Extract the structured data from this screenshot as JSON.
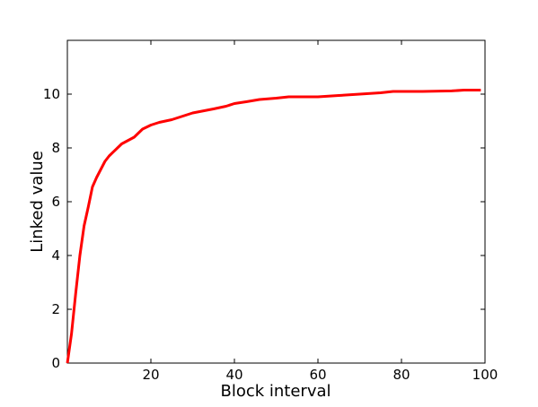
{
  "chart_data": {
    "type": "line",
    "x_label": "Block interval",
    "y_label": "Linked value",
    "series": [
      {
        "color": "#ff0000",
        "x": [
          0,
          1,
          2,
          3,
          4,
          5,
          6,
          7,
          8,
          9,
          10,
          12,
          13,
          16,
          18,
          20,
          22,
          25,
          28,
          30,
          35,
          38,
          40,
          43,
          46,
          50,
          53,
          60,
          65,
          70,
          75,
          78,
          85,
          92,
          95,
          99
        ],
        "values": [
          0,
          1.1,
          2.6,
          4.0,
          5.1,
          5.8,
          6.55,
          6.9,
          7.2,
          7.5,
          7.7,
          8.0,
          8.15,
          8.4,
          8.7,
          8.85,
          8.95,
          9.05,
          9.2,
          9.3,
          9.45,
          9.55,
          9.65,
          9.72,
          9.8,
          9.85,
          9.9,
          9.9,
          9.95,
          10.0,
          10.05,
          10.1,
          10.1,
          10.12,
          10.15,
          10.15
        ]
      }
    ],
    "xlim": [
      0,
      100
    ],
    "ylim": [
      0,
      12
    ],
    "xticks": [
      20,
      40,
      60,
      80,
      100
    ],
    "yticks": [
      0,
      2,
      4,
      6,
      8,
      10
    ]
  }
}
